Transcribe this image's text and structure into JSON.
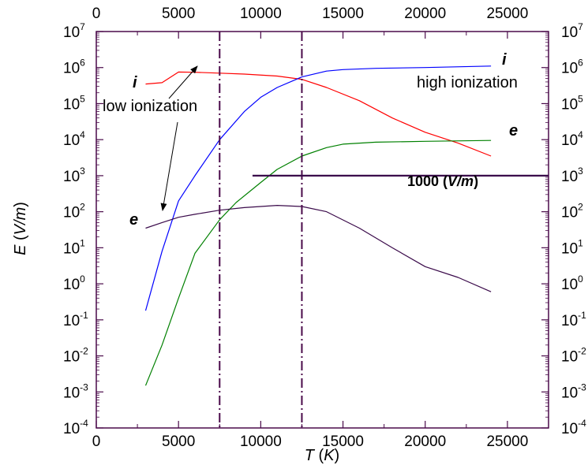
{
  "chart_data": {
    "type": "line",
    "title": "",
    "xlabel": {
      "italic": "T",
      "unit_open": " (",
      "unit": "K",
      "unit_close": ")"
    },
    "ylabel": {
      "italic": "E",
      "unit_open": " (",
      "unit": "V/m",
      "unit_close": ")"
    },
    "xlim": [
      0,
      27500
    ],
    "ylim": [
      -4,
      7
    ],
    "y_scale": "log10",
    "x_ticks": [
      "0",
      "5000",
      "10000",
      "15000",
      "20000",
      "25000"
    ],
    "x_tick_values": [
      0,
      5000,
      10000,
      15000,
      20000,
      25000
    ],
    "y_tick_exponents": [
      "-4",
      "-3",
      "-2",
      "-1",
      "0",
      "1",
      "2",
      "3",
      "4",
      "5",
      "6",
      "7"
    ],
    "y_tick_base": "10",
    "grid": false,
    "colors": {
      "ion_low": "#ff0000",
      "ion_high": "#0000ff",
      "electron_high": "#008000",
      "electron_low": "#3a0a4a",
      "axis": "#4a0a4a",
      "vline": "#4a0a4a",
      "hline": "#3a0a4a"
    },
    "series": [
      {
        "key": "ion_low",
        "points": [
          [
            3000,
            350000
          ],
          [
            4000,
            380000
          ],
          [
            5000,
            750000
          ],
          [
            6000,
            740000
          ],
          [
            7500,
            700000
          ],
          [
            9000,
            660000
          ],
          [
            11000,
            580000
          ],
          [
            12500,
            470000
          ],
          [
            14000,
            280000
          ],
          [
            16000,
            120000
          ],
          [
            18000,
            40000
          ],
          [
            20000,
            16000
          ],
          [
            22000,
            8000
          ],
          [
            24000,
            3500
          ]
        ]
      },
      {
        "key": "ion_high",
        "points": [
          [
            3000,
            0.18
          ],
          [
            4000,
            8
          ],
          [
            5000,
            200
          ],
          [
            6000,
            1000
          ],
          [
            7500,
            10000
          ],
          [
            9000,
            60000
          ],
          [
            10000,
            150000
          ],
          [
            11000,
            280000
          ],
          [
            12500,
            550000
          ],
          [
            14000,
            800000
          ],
          [
            15000,
            880000
          ],
          [
            17000,
            950000
          ],
          [
            20000,
            1000000
          ],
          [
            24000,
            1100000
          ]
        ]
      },
      {
        "key": "electron_high",
        "points": [
          [
            3000,
            0.0015
          ],
          [
            4000,
            0.02
          ],
          [
            5000,
            0.4
          ],
          [
            6000,
            7
          ],
          [
            7500,
            60
          ],
          [
            8500,
            180
          ],
          [
            10000,
            650
          ],
          [
            11000,
            1500
          ],
          [
            12500,
            3500
          ],
          [
            14000,
            6000
          ],
          [
            15000,
            7500
          ],
          [
            17000,
            8500
          ],
          [
            20000,
            9000
          ],
          [
            24000,
            9500
          ]
        ]
      },
      {
        "key": "electron_low",
        "points": [
          [
            3000,
            35
          ],
          [
            4000,
            50
          ],
          [
            5000,
            70
          ],
          [
            6000,
            85
          ],
          [
            7500,
            110
          ],
          [
            9000,
            130
          ],
          [
            11000,
            150
          ],
          [
            12500,
            140
          ],
          [
            14000,
            100
          ],
          [
            16000,
            35
          ],
          [
            18000,
            10
          ],
          [
            20000,
            3
          ],
          [
            22000,
            1.5
          ],
          [
            24000,
            0.6
          ]
        ]
      }
    ],
    "vlines": [
      7500,
      12500
    ],
    "hline": {
      "y": 1000,
      "x_start": 9500
    }
  },
  "annotations": {
    "ion_left": "i",
    "ion_right": "i",
    "electron_left": "e",
    "electron_right": "e",
    "low_ionization": "low ionization",
    "high_ionization": "high ionization",
    "threshold_value": "1000",
    "threshold_unit_open": " (",
    "threshold_unit": "V/m",
    "threshold_unit_close": ")"
  }
}
